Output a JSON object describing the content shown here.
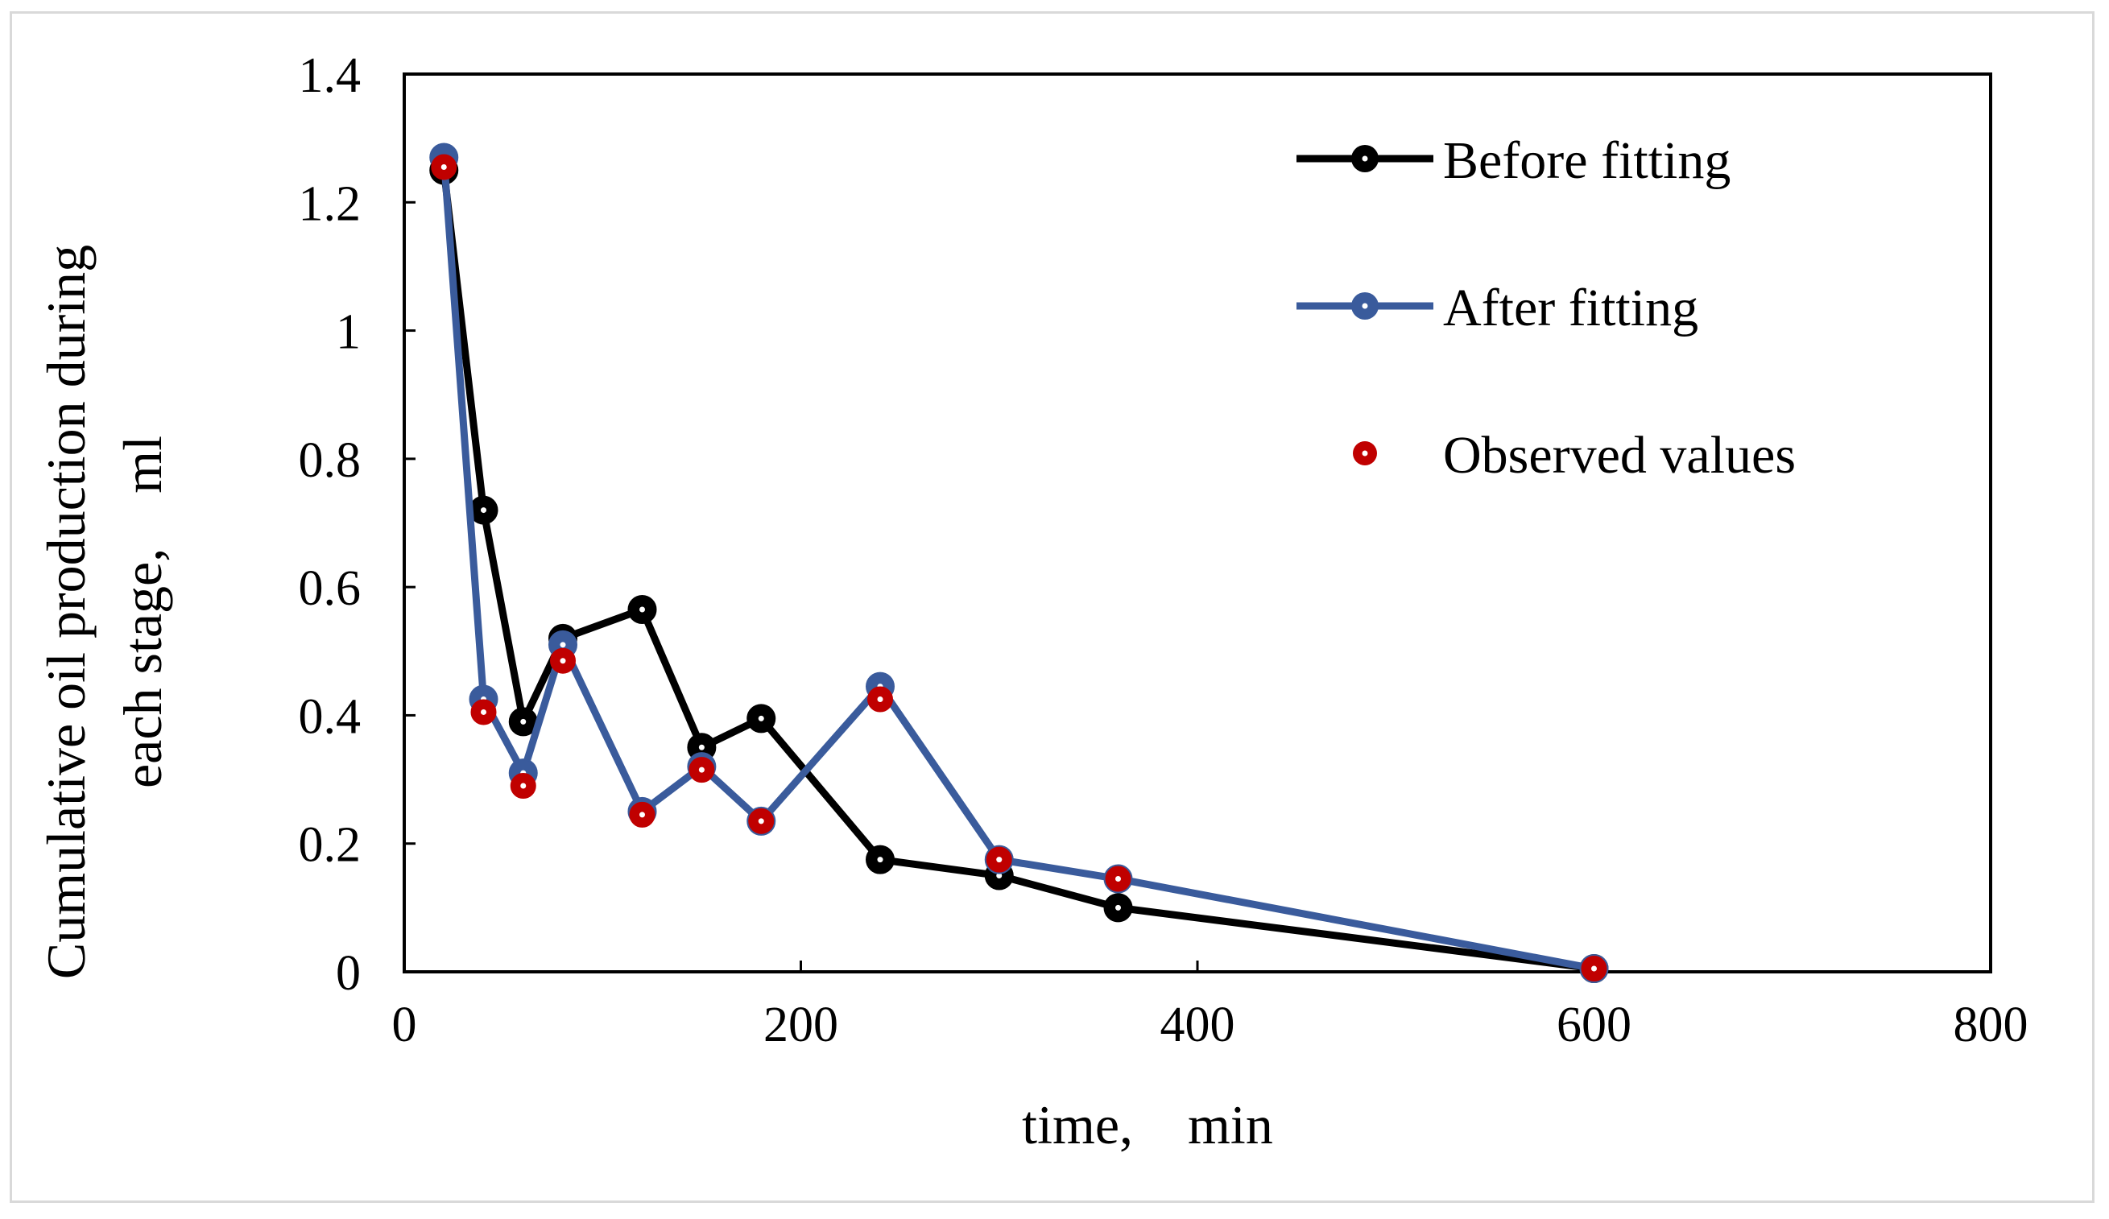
{
  "chart_data": {
    "type": "line",
    "title": "",
    "xlabel": "time,　min",
    "ylabel_lines": [
      "Cumulative oil production during",
      "each stage,　ml"
    ],
    "xlim": [
      0,
      800
    ],
    "ylim": [
      0,
      1.4
    ],
    "xticks": [
      "0",
      "200",
      "400",
      "600",
      "800"
    ],
    "yticks": [
      "0",
      "0.2",
      "0.4",
      "0.6",
      "0.8",
      "1",
      "1.2",
      "1.4"
    ],
    "grid": false,
    "legend_position": "top-right",
    "series": [
      {
        "name": "Before fitting",
        "color": "#000000",
        "marker": "circle",
        "line": true,
        "x": [
          20,
          40,
          60,
          80,
          120,
          150,
          180,
          240,
          300,
          360,
          600
        ],
        "y": [
          1.25,
          0.72,
          0.39,
          0.52,
          0.565,
          0.35,
          0.395,
          0.175,
          0.15,
          0.1,
          0.005
        ]
      },
      {
        "name": "After fitting",
        "color": "#3A5B9C",
        "marker": "circle",
        "line": true,
        "x": [
          20,
          40,
          60,
          80,
          120,
          150,
          180,
          240,
          300,
          360,
          600
        ],
        "y": [
          1.27,
          0.425,
          0.31,
          0.51,
          0.25,
          0.32,
          0.235,
          0.445,
          0.175,
          0.145,
          0.005
        ]
      },
      {
        "name": "Observed values",
        "color": "#C00000",
        "marker": "circle",
        "line": false,
        "x": [
          20,
          40,
          60,
          80,
          120,
          150,
          180,
          240,
          300,
          360,
          600
        ],
        "y": [
          1.255,
          0.405,
          0.29,
          0.485,
          0.245,
          0.315,
          0.235,
          0.425,
          0.175,
          0.145,
          0.005
        ]
      }
    ]
  }
}
